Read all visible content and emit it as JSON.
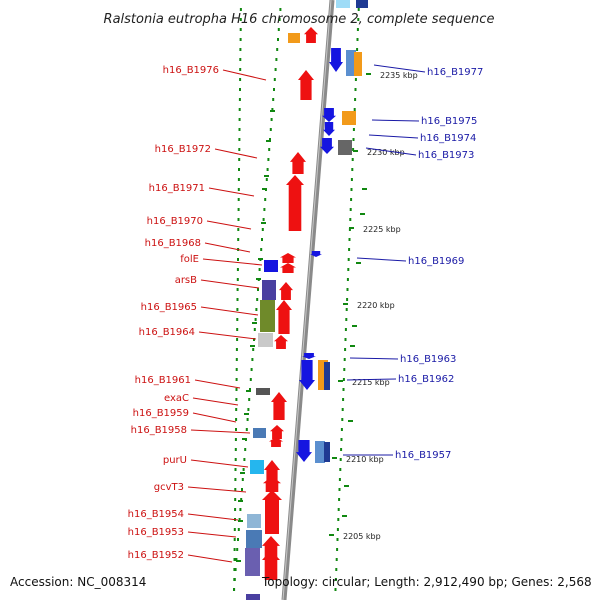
{
  "title": "Ralstonia eutropha H16 chromosome 2, complete sequence",
  "footer": {
    "accession": "Accession: NC_008314",
    "summary": "Topology: circular; Length: 2,912,490 bp; Genes: 2,568"
  },
  "colors": {
    "forward_gene": "#ee1111",
    "reverse_gene": "#1515e0",
    "left_label": "#cc1111",
    "right_label": "#1a1aa6",
    "backbone": "#888888",
    "tick": "#118811"
  },
  "scale_labels": [
    "2235 kbp",
    "2230 kbp",
    "2225 kbp",
    "2220 kbp",
    "2215 kbp",
    "2210 kbp",
    "2205 kbp"
  ],
  "left_genes": [
    "h16_B1976",
    "h16_B1972",
    "h16_B1971",
    "h16_B1970",
    "h16_B1968",
    "folE",
    "arsB",
    "h16_B1965",
    "h16_B1964",
    "h16_B1961",
    "exaC",
    "h16_B1959",
    "h16_B1958",
    "purU",
    "gcvT3",
    "h16_B1954",
    "h16_B1953",
    "h16_B1952"
  ],
  "right_genes": [
    "h16_B1977",
    "h16_B1975",
    "h16_B1974",
    "h16_B1973",
    "h16_B1969",
    "h16_B1963",
    "h16_B1962",
    "h16_B1957"
  ]
}
